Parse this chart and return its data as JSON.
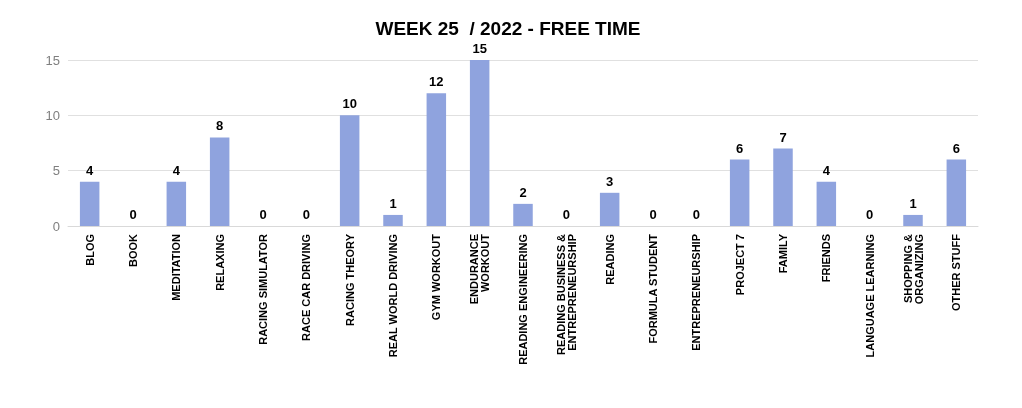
{
  "chart_data": {
    "type": "bar",
    "title": "WEEK 25  / 2022 - FREE TIME",
    "categories": [
      "BLOG",
      "BOOK",
      "MEDITATION",
      "RELAXING",
      "RACING SIMULATOR",
      "RACE CAR DRIVING",
      "RACING THEORY",
      "REAL WORLD DRIVING",
      "GYM WORKOUT",
      "ENDURANCE\nWORKOUT",
      "READING ENGINEERING",
      "READING BUSINESS &\nENTREPRENEURSHIP",
      "READING",
      "FORMULA STUDENT",
      "ENTREPRENEURSHIP",
      "PROJECT 7",
      "FAMILY",
      "FRIENDS",
      "LANGUAGE LEARNING",
      "SHOPPING &\nORGANIZING",
      "OTHER STUFF"
    ],
    "values": [
      4,
      0,
      4,
      8,
      0,
      0,
      10,
      1,
      12,
      15,
      2,
      0,
      3,
      0,
      0,
      6,
      7,
      4,
      0,
      1,
      6
    ],
    "color": "#8fa3de",
    "ylim": [
      0,
      15
    ],
    "yticks": [
      0,
      5,
      10,
      15
    ],
    "grid": "y",
    "data_labels": true
  }
}
